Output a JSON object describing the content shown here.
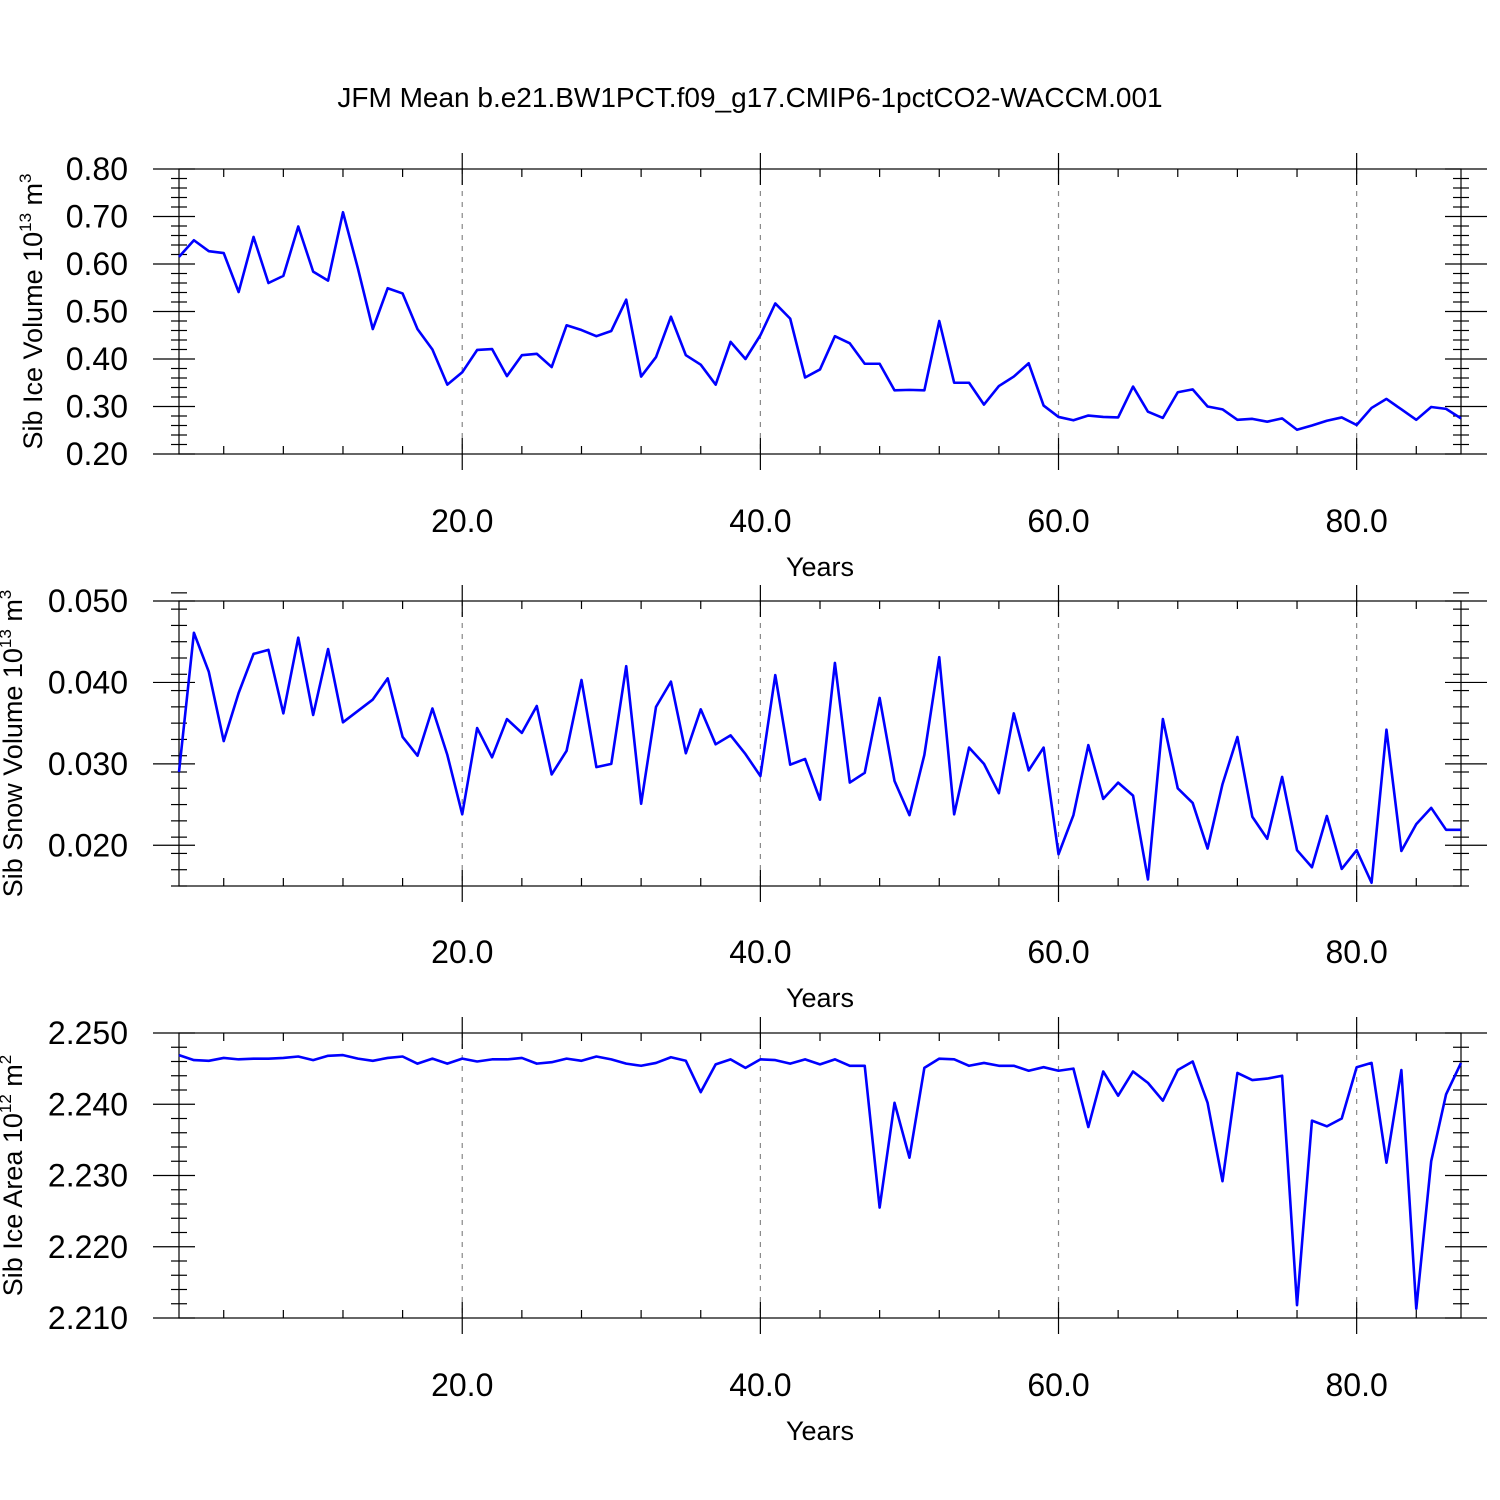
{
  "title": "JFM Mean b.e21.BW1PCT.f09_g17.CMIP6-1pctCO2-WACCM.001",
  "chart_data": [
    {
      "type": "line",
      "ylabel": "Sib Ice Volume 10",
      "ylabel_exp": "13",
      "ylabel_unit": " m",
      "ylabel_unit_exp": "3",
      "xlabel": "Years",
      "xlim": [
        1,
        87
      ],
      "ylim": [
        0.2,
        0.8
      ],
      "yticks": [
        0.2,
        0.3,
        0.4,
        0.5,
        0.6,
        0.7,
        0.8
      ],
      "ytick_labels": [
        "0.20",
        "0.30",
        "0.40",
        "0.50",
        "0.60",
        "0.70",
        "0.80"
      ],
      "yminor_step": 0.02,
      "xticks": [
        20,
        40,
        60,
        80
      ],
      "xtick_labels": [
        "20.0",
        "40.0",
        "60.0",
        "80.0"
      ],
      "xminor_step": 4,
      "grid": "x-dashed",
      "color": "#0000ff",
      "series": [
        {
          "x_start": 1,
          "values": [
            0.615,
            0.65,
            0.627,
            0.623,
            0.541,
            0.657,
            0.56,
            0.575,
            0.679,
            0.584,
            0.565,
            0.709,
            0.591,
            0.463,
            0.549,
            0.538,
            0.463,
            0.42,
            0.346,
            0.372,
            0.419,
            0.421,
            0.364,
            0.408,
            0.411,
            0.383,
            0.471,
            0.461,
            0.448,
            0.459,
            0.525,
            0.363,
            0.404,
            0.489,
            0.408,
            0.388,
            0.346,
            0.436,
            0.4,
            0.45,
            0.517,
            0.485,
            0.361,
            0.378,
            0.448,
            0.433,
            0.39,
            0.39,
            0.334,
            0.335,
            0.334,
            0.48,
            0.35,
            0.35,
            0.304,
            0.343,
            0.363,
            0.391,
            0.302,
            0.278,
            0.271,
            0.281,
            0.278,
            0.277,
            0.342,
            0.289,
            0.276,
            0.33,
            0.336,
            0.3,
            0.294,
            0.272,
            0.274,
            0.268,
            0.275,
            0.251,
            0.26,
            0.27,
            0.277,
            0.261,
            0.297,
            0.316,
            0.294,
            0.272,
            0.299,
            0.295,
            0.275
          ]
        }
      ]
    },
    {
      "type": "line",
      "ylabel": "Sib Snow Volume 10",
      "ylabel_exp": "13",
      "ylabel_unit": " m",
      "ylabel_unit_exp": "3",
      "xlabel": "Years",
      "xlim": [
        1,
        87
      ],
      "ylim": [
        0.015,
        0.05
      ],
      "yticks": [
        0.02,
        0.03,
        0.04,
        0.05
      ],
      "ytick_labels": [
        "0.020",
        "0.030",
        "0.040",
        "0.050"
      ],
      "yminor_step": 0.002,
      "xticks": [
        20,
        40,
        60,
        80
      ],
      "xtick_labels": [
        "20.0",
        "40.0",
        "60.0",
        "80.0"
      ],
      "xminor_step": 4,
      "grid": "x-dashed",
      "color": "#0000ff",
      "series": [
        {
          "x_start": 1,
          "values": [
            0.029,
            0.0461,
            0.0413,
            0.0328,
            0.0387,
            0.0435,
            0.044,
            0.0362,
            0.0455,
            0.036,
            0.0441,
            0.0351,
            0.0365,
            0.0379,
            0.0405,
            0.0333,
            0.031,
            0.0368,
            0.0311,
            0.0238,
            0.0344,
            0.0308,
            0.0355,
            0.0338,
            0.0371,
            0.0287,
            0.0316,
            0.0403,
            0.0296,
            0.03,
            0.042,
            0.0251,
            0.037,
            0.0401,
            0.0313,
            0.0367,
            0.0324,
            0.0335,
            0.0312,
            0.0285,
            0.0409,
            0.0299,
            0.0306,
            0.0256,
            0.0424,
            0.0277,
            0.0289,
            0.0381,
            0.0279,
            0.0237,
            0.0311,
            0.0431,
            0.0238,
            0.032,
            0.03,
            0.0264,
            0.0362,
            0.0292,
            0.032,
            0.0189,
            0.0237,
            0.0323,
            0.0257,
            0.0277,
            0.0261,
            0.0158,
            0.0355,
            0.027,
            0.0252,
            0.0196,
            0.0275,
            0.0333,
            0.0235,
            0.0208,
            0.0284,
            0.0194,
            0.0173,
            0.0236,
            0.0171,
            0.0194,
            0.0154,
            0.0342,
            0.0193,
            0.0226,
            0.0246,
            0.0219,
            0.0219
          ]
        }
      ]
    },
    {
      "type": "line",
      "ylabel": "Sib Ice Area 10",
      "ylabel_exp": "12",
      "ylabel_unit": " m",
      "ylabel_unit_exp": "2",
      "xlabel": "Years",
      "xlim": [
        1,
        87
      ],
      "ylim": [
        2.21,
        2.25
      ],
      "yticks": [
        2.21,
        2.22,
        2.23,
        2.24,
        2.25
      ],
      "ytick_labels": [
        "2.210",
        "2.220",
        "2.230",
        "2.240",
        "2.250"
      ],
      "yminor_step": 0.002,
      "xticks": [
        20,
        40,
        60,
        80
      ],
      "xtick_labels": [
        "20.0",
        "40.0",
        "60.0",
        "80.0"
      ],
      "xminor_step": 4,
      "grid": "x-dashed",
      "color": "#0000ff",
      "series": [
        {
          "x_start": 1,
          "values": [
            2.2469,
            2.2462,
            2.2461,
            2.2465,
            2.2463,
            2.2464,
            2.2464,
            2.2465,
            2.2467,
            2.2462,
            2.2468,
            2.2469,
            2.2464,
            2.2461,
            2.2465,
            2.2467,
            2.2457,
            2.2464,
            2.2457,
            2.2464,
            2.246,
            2.2463,
            2.2463,
            2.2465,
            2.2457,
            2.2459,
            2.2464,
            2.2461,
            2.2467,
            2.2463,
            2.2457,
            2.2454,
            2.2458,
            2.2466,
            2.2461,
            2.2417,
            2.2456,
            2.2463,
            2.2451,
            2.2463,
            2.2462,
            2.2457,
            2.2463,
            2.2456,
            2.2463,
            2.2454,
            2.2454,
            2.2255,
            2.2402,
            2.2325,
            2.2451,
            2.2464,
            2.2463,
            2.2454,
            2.2458,
            2.2454,
            2.2454,
            2.2447,
            2.2452,
            2.2447,
            2.245,
            2.2368,
            2.2446,
            2.2412,
            2.2446,
            2.243,
            2.2405,
            2.2448,
            2.246,
            2.2402,
            2.2292,
            2.2444,
            2.2434,
            2.2436,
            2.244,
            2.2118,
            2.2377,
            2.2369,
            2.238,
            2.2452,
            2.2458,
            2.2318,
            2.2448,
            2.2113,
            2.232,
            2.2414,
            2.2458
          ]
        }
      ]
    }
  ]
}
